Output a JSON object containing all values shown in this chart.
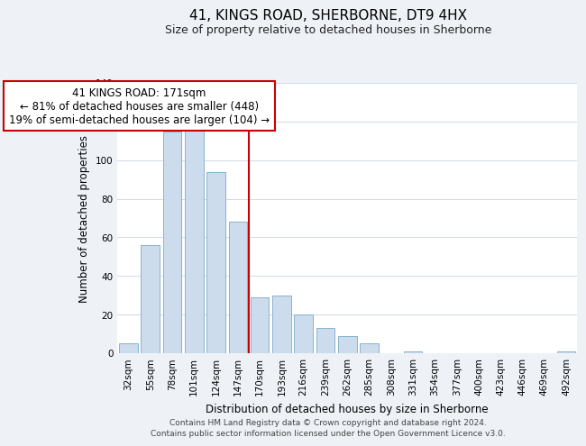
{
  "title": "41, KINGS ROAD, SHERBORNE, DT9 4HX",
  "subtitle": "Size of property relative to detached houses in Sherborne",
  "xlabel": "Distribution of detached houses by size in Sherborne",
  "ylabel": "Number of detached properties",
  "bar_labels": [
    "32sqm",
    "55sqm",
    "78sqm",
    "101sqm",
    "124sqm",
    "147sqm",
    "170sqm",
    "193sqm",
    "216sqm",
    "239sqm",
    "262sqm",
    "285sqm",
    "308sqm",
    "331sqm",
    "354sqm",
    "377sqm",
    "400sqm",
    "423sqm",
    "446sqm",
    "469sqm",
    "492sqm"
  ],
  "bar_values": [
    5,
    56,
    115,
    133,
    94,
    68,
    29,
    30,
    20,
    13,
    9,
    5,
    0,
    1,
    0,
    0,
    0,
    0,
    0,
    0,
    1
  ],
  "bar_color": "#ccdcec",
  "bar_edge_color": "#7aaac8",
  "highlight_line_color": "#cc0000",
  "highlight_index": 6,
  "annotation_line1": "41 KINGS ROAD: 171sqm",
  "annotation_line2": "← 81% of detached houses are smaller (448)",
  "annotation_line3": "19% of semi-detached houses are larger (104) →",
  "annotation_box_edge_color": "#cc0000",
  "annotation_box_face_color": "#ffffff",
  "ylim": [
    0,
    140
  ],
  "yticks": [
    0,
    20,
    40,
    60,
    80,
    100,
    120,
    140
  ],
  "footer_line1": "Contains HM Land Registry data © Crown copyright and database right 2024.",
  "footer_line2": "Contains public sector information licensed under the Open Government Licence v3.0.",
  "background_color": "#eef2f7",
  "plot_background_color": "#ffffff",
  "grid_color": "#d0dae8",
  "title_fontsize": 11,
  "subtitle_fontsize": 9,
  "axis_label_fontsize": 8.5,
  "tick_fontsize": 7.5,
  "annotation_fontsize": 8.5,
  "footer_fontsize": 6.5
}
